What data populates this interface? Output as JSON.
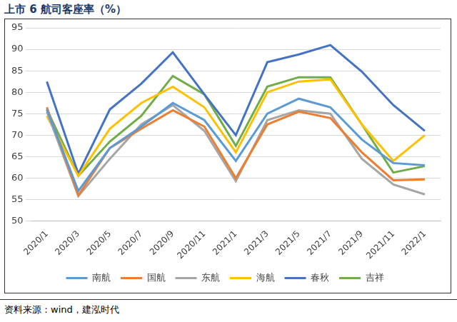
{
  "chart_data": {
    "type": "line",
    "title": "上市 6 航司客座率（%）",
    "source": "资料来源：wind，建泓时代",
    "categories": [
      "2020/1",
      "2020/3",
      "2020/5",
      "2020/7",
      "2020/9",
      "2020/11",
      "2021/1",
      "2021/3",
      "2021/5",
      "2021/7",
      "2021/9",
      "2021/11",
      "2022/1"
    ],
    "series": [
      {
        "name": "南航",
        "color": "#5b9bd5",
        "values": [
          76,
          57,
          67,
          72,
          77.5,
          73.5,
          64,
          75,
          78.5,
          76.5,
          69,
          63.5,
          63
        ]
      },
      {
        "name": "国航",
        "color": "#ed7d31",
        "values": [
          76.5,
          56,
          67,
          71.5,
          75.8,
          72,
          60,
          72.5,
          75.5,
          74,
          66,
          59.5,
          59.7
        ]
      },
      {
        "name": "东航",
        "color": "#a5a5a5",
        "values": [
          75.5,
          55.8,
          64.5,
          72.5,
          77,
          71,
          59.3,
          73.5,
          75.8,
          75,
          64.5,
          58.5,
          56.2
        ]
      },
      {
        "name": "海航",
        "color": "#ffc000",
        "values": [
          74.5,
          60.5,
          71.5,
          77.5,
          81.3,
          76.5,
          66,
          80,
          82.5,
          83,
          72.5,
          64,
          70
        ]
      },
      {
        "name": "春秋",
        "color": "#4472c4",
        "values": [
          82.5,
          61,
          76,
          82,
          89.3,
          79.5,
          70,
          87,
          88.8,
          91,
          84.8,
          77,
          71
        ]
      },
      {
        "name": "吉祥",
        "color": "#70ad47",
        "values": [
          76,
          60.5,
          68.5,
          74.5,
          83.8,
          79.5,
          67.5,
          81.3,
          83.5,
          83.5,
          72.5,
          61.3,
          62.8
        ]
      }
    ],
    "ylim": [
      50,
      95
    ],
    "yticks": [
      50,
      55,
      60,
      65,
      70,
      75,
      80,
      85,
      90,
      95
    ],
    "grid": true,
    "legend": "bottom",
    "marker": "none",
    "line_style": "solid"
  }
}
